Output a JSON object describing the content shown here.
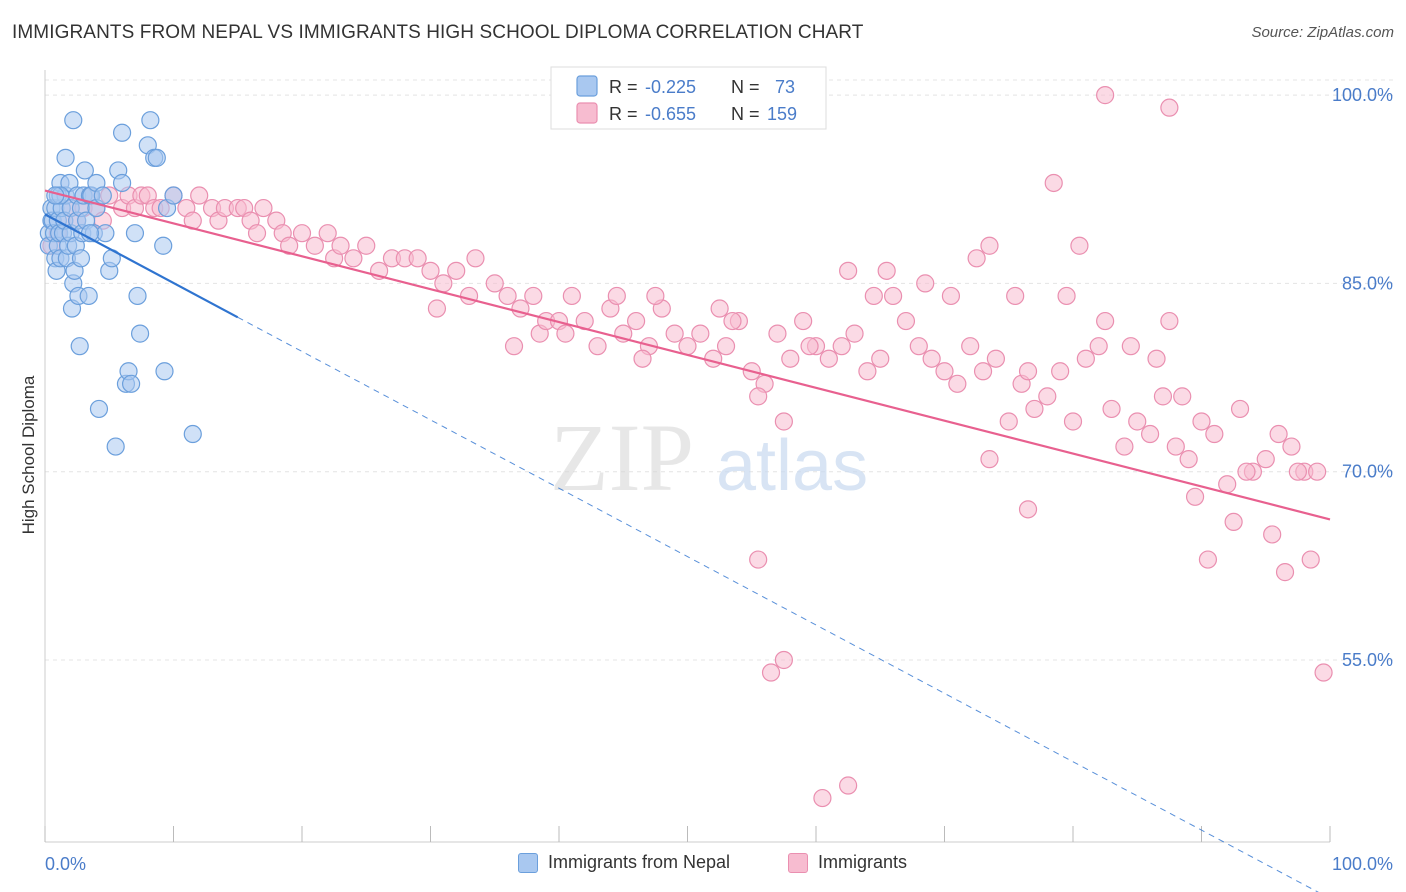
{
  "header": {
    "title": "IMMIGRANTS FROM NEPAL VS IMMIGRANTS HIGH SCHOOL DIPLOMA CORRELATION CHART",
    "source": "Source: ZipAtlas.com"
  },
  "watermark": {
    "zip": "ZIP",
    "atlas": "atlas"
  },
  "colors": {
    "blue_fill": "#a9c8f0",
    "blue_stroke": "#6b9fdc",
    "blue_line": "#2f74d0",
    "pink_fill": "#f7bcd0",
    "pink_stroke": "#ea8fb0",
    "pink_line": "#e8608f",
    "tick_label": "#4a7cc9",
    "grid": "#e4e4e4"
  },
  "legend": {
    "items": [
      {
        "r_label": "R =",
        "r_value": "-0.225",
        "n_label": "N =",
        "n_value": "73"
      },
      {
        "r_label": "R =",
        "r_value": "-0.655",
        "n_label": "N =",
        "n_value": "159"
      }
    ]
  },
  "chart_data": {
    "type": "scatter",
    "title": "IMMIGRANTS FROM NEPAL VS IMMIGRANTS HIGH SCHOOL DIPLOMA CORRELATION CHART",
    "xlabel": "",
    "ylabel": "High School Diploma",
    "xlim": [
      0,
      100
    ],
    "ylim": [
      40.5,
      102
    ],
    "x_tick_labels": [
      "0.0%",
      "100.0%"
    ],
    "y_ticks": [
      55,
      70,
      85,
      100
    ],
    "y_tick_labels": [
      "55.0%",
      "70.0%",
      "85.0%",
      "100.0%"
    ],
    "grid": true,
    "legend_position": "top-center",
    "series": [
      {
        "name": "Immigrants from Nepal",
        "r": -0.225,
        "n": 73,
        "trend": {
          "x0": 0,
          "y0": 90.5,
          "x1": 15,
          "y1": 82.3,
          "dashed_to": {
            "x": 100,
            "y": 36
          }
        },
        "points": [
          [
            0.3,
            89
          ],
          [
            0.3,
            88
          ],
          [
            0.5,
            90
          ],
          [
            0.5,
            91
          ],
          [
            0.6,
            90
          ],
          [
            0.7,
            89
          ],
          [
            0.8,
            87
          ],
          [
            0.8,
            91
          ],
          [
            0.9,
            86
          ],
          [
            1,
            88
          ],
          [
            1,
            90
          ],
          [
            1,
            92
          ],
          [
            1.1,
            89
          ],
          [
            1.2,
            87
          ],
          [
            1.2,
            93
          ],
          [
            1.3,
            91
          ],
          [
            1.4,
            89
          ],
          [
            1.5,
            90
          ],
          [
            1.6,
            92
          ],
          [
            1.7,
            87
          ],
          [
            1.8,
            88
          ],
          [
            1.9,
            93
          ],
          [
            2,
            91
          ],
          [
            2,
            89
          ],
          [
            2.1,
            83
          ],
          [
            2.2,
            85
          ],
          [
            2.3,
            86
          ],
          [
            2.4,
            88
          ],
          [
            2.5,
            90
          ],
          [
            2.5,
            92
          ],
          [
            2.6,
            84
          ],
          [
            2.7,
            80
          ],
          [
            2.8,
            91
          ],
          [
            2.9,
            89
          ],
          [
            3,
            92
          ],
          [
            3.1,
            94
          ],
          [
            3.2,
            90
          ],
          [
            3.4,
            84
          ],
          [
            3.5,
            92
          ],
          [
            3.6,
            92
          ],
          [
            3.8,
            89
          ],
          [
            4,
            91
          ],
          [
            4,
            93
          ],
          [
            4.2,
            75
          ],
          [
            4.5,
            92
          ],
          [
            4.7,
            89
          ],
          [
            5,
            86
          ],
          [
            5.2,
            87
          ],
          [
            5.5,
            72
          ],
          [
            5.7,
            94
          ],
          [
            6,
            97
          ],
          [
            6,
            93
          ],
          [
            6.3,
            77
          ],
          [
            6.5,
            78
          ],
          [
            6.7,
            77
          ],
          [
            7,
            89
          ],
          [
            7.2,
            84
          ],
          [
            7.4,
            81
          ],
          [
            8,
            96
          ],
          [
            8.2,
            98
          ],
          [
            8.5,
            95
          ],
          [
            8.7,
            95
          ],
          [
            9.2,
            88
          ],
          [
            9.3,
            78
          ],
          [
            9.5,
            91
          ],
          [
            10,
            92
          ],
          [
            11.5,
            73
          ],
          [
            1.6,
            95
          ],
          [
            2.2,
            98
          ],
          [
            1.2,
            92
          ],
          [
            0.8,
            92
          ],
          [
            3.5,
            89
          ],
          [
            2.8,
            87
          ]
        ]
      },
      {
        "name": "Immigrants",
        "r": -0.655,
        "n": 159,
        "trend": {
          "x0": 0,
          "y0": 92.4,
          "x1": 100,
          "y1": 66.2
        },
        "points": [
          [
            0.5,
            88
          ],
          [
            1,
            89
          ],
          [
            1.5,
            90
          ],
          [
            2,
            91
          ],
          [
            2.5,
            90
          ],
          [
            3,
            91
          ],
          [
            3.5,
            92
          ],
          [
            4,
            91
          ],
          [
            4.5,
            90
          ],
          [
            5,
            92
          ],
          [
            6,
            91
          ],
          [
            6.5,
            92
          ],
          [
            7,
            91
          ],
          [
            7.5,
            92
          ],
          [
            8,
            92
          ],
          [
            8.5,
            91
          ],
          [
            9,
            91
          ],
          [
            10,
            92
          ],
          [
            11,
            91
          ],
          [
            11.5,
            90
          ],
          [
            12,
            92
          ],
          [
            13,
            91
          ],
          [
            13.5,
            90
          ],
          [
            14,
            91
          ],
          [
            15,
            91
          ],
          [
            15.5,
            91
          ],
          [
            16,
            90
          ],
          [
            16.5,
            89
          ],
          [
            17,
            91
          ],
          [
            18,
            90
          ],
          [
            18.5,
            89
          ],
          [
            19,
            88
          ],
          [
            20,
            89
          ],
          [
            21,
            88
          ],
          [
            22,
            89
          ],
          [
            22.5,
            87
          ],
          [
            23,
            88
          ],
          [
            24,
            87
          ],
          [
            25,
            88
          ],
          [
            26,
            86
          ],
          [
            27,
            87
          ],
          [
            28,
            87
          ],
          [
            29,
            87
          ],
          [
            30,
            86
          ],
          [
            31,
            85
          ],
          [
            32,
            86
          ],
          [
            33,
            84
          ],
          [
            33.5,
            87
          ],
          [
            35,
            85
          ],
          [
            36,
            84
          ],
          [
            37,
            83
          ],
          [
            38,
            84
          ],
          [
            38.5,
            81
          ],
          [
            39,
            82
          ],
          [
            40,
            82
          ],
          [
            41,
            84
          ],
          [
            42,
            82
          ],
          [
            43,
            80
          ],
          [
            44,
            83
          ],
          [
            45,
            81
          ],
          [
            46,
            82
          ],
          [
            47,
            80
          ],
          [
            48,
            83
          ],
          [
            49,
            81
          ],
          [
            50,
            80
          ],
          [
            51,
            81
          ],
          [
            52,
            79
          ],
          [
            53,
            80
          ],
          [
            54,
            82
          ],
          [
            55,
            78
          ],
          [
            56,
            77
          ],
          [
            57,
            81
          ],
          [
            58,
            79
          ],
          [
            59,
            82
          ],
          [
            60,
            80
          ],
          [
            61,
            79
          ],
          [
            62,
            80
          ],
          [
            63,
            81
          ],
          [
            64,
            78
          ],
          [
            65,
            79
          ],
          [
            66,
            84
          ],
          [
            67,
            82
          ],
          [
            68,
            80
          ],
          [
            69,
            79
          ],
          [
            70,
            78
          ],
          [
            71,
            77
          ],
          [
            72,
            80
          ],
          [
            73,
            78
          ],
          [
            74,
            79
          ],
          [
            75,
            74
          ],
          [
            76,
            77
          ],
          [
            77,
            75
          ],
          [
            78,
            76
          ],
          [
            79,
            78
          ],
          [
            80,
            74
          ],
          [
            81,
            79
          ],
          [
            82,
            80
          ],
          [
            83,
            75
          ],
          [
            84,
            72
          ],
          [
            85,
            74
          ],
          [
            86,
            73
          ],
          [
            87,
            76
          ],
          [
            88,
            72
          ],
          [
            89,
            71
          ],
          [
            90,
            74
          ],
          [
            91,
            73
          ],
          [
            92,
            69
          ],
          [
            93,
            75
          ],
          [
            94,
            70
          ],
          [
            95,
            71
          ],
          [
            96,
            73
          ],
          [
            97,
            72
          ],
          [
            98,
            70
          ],
          [
            99,
            70
          ],
          [
            30.5,
            83
          ],
          [
            36.5,
            80
          ],
          [
            40.5,
            81
          ],
          [
            44.5,
            84
          ],
          [
            46.5,
            79
          ],
          [
            47.5,
            84
          ],
          [
            52.5,
            83
          ],
          [
            53.5,
            82
          ],
          [
            55.5,
            76
          ],
          [
            57.5,
            74
          ],
          [
            59.5,
            80
          ],
          [
            62.5,
            86
          ],
          [
            64.5,
            84
          ],
          [
            65.5,
            86
          ],
          [
            68.5,
            85
          ],
          [
            70.5,
            84
          ],
          [
            72.5,
            87
          ],
          [
            73.5,
            88
          ],
          [
            75.5,
            84
          ],
          [
            76.5,
            78
          ],
          [
            78.5,
            93
          ],
          [
            79.5,
            84
          ],
          [
            80.5,
            88
          ],
          [
            82.5,
            82
          ],
          [
            84.5,
            80
          ],
          [
            86.5,
            79
          ],
          [
            87.5,
            82
          ],
          [
            88.5,
            76
          ],
          [
            89.5,
            68
          ],
          [
            90.5,
            63
          ],
          [
            92.5,
            66
          ],
          [
            93.5,
            70
          ],
          [
            95.5,
            65
          ],
          [
            96.5,
            62
          ],
          [
            97.5,
            70
          ],
          [
            98.5,
            63
          ],
          [
            99.5,
            54
          ],
          [
            55.5,
            63
          ],
          [
            56.5,
            54
          ],
          [
            57.5,
            55
          ],
          [
            60.5,
            44
          ],
          [
            62.5,
            45
          ],
          [
            73.5,
            71
          ],
          [
            76.5,
            67
          ],
          [
            82.5,
            100
          ],
          [
            87.5,
            99
          ]
        ]
      }
    ]
  },
  "bottom_legend": {
    "items": [
      "Immigrants from Nepal",
      "Immigrants"
    ]
  }
}
